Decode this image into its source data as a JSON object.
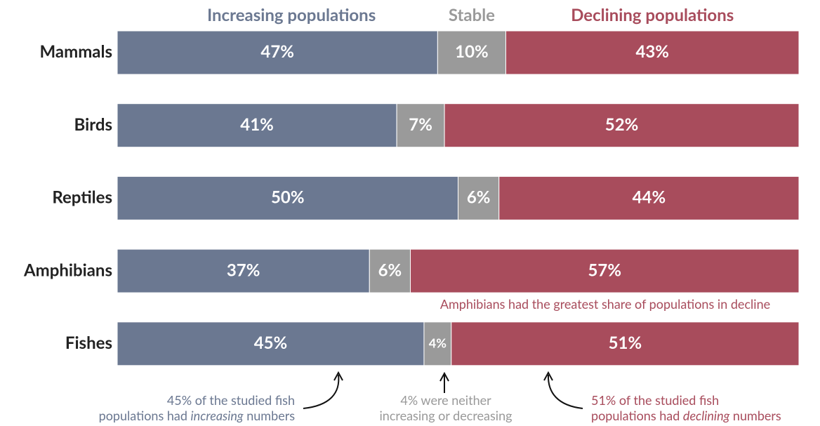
{
  "chart_data": {
    "type": "stacked-bar",
    "orientation": "horizontal",
    "categories": [
      "Mammals",
      "Birds",
      "Reptiles",
      "Amphibians",
      "Fishes"
    ],
    "xlim": [
      0,
      100
    ],
    "series": [
      {
        "name": "Increasing populations",
        "color": "#6b7891",
        "values": [
          47,
          41,
          50,
          37,
          45
        ],
        "value_labels": [
          "47%",
          "41%",
          "50%",
          "37%",
          "45%"
        ]
      },
      {
        "name": "Stable",
        "color": "#9a9a9a",
        "values": [
          10,
          7,
          6,
          6,
          4
        ],
        "value_labels": [
          "10%",
          "7%",
          "6%",
          "6%",
          "4%"
        ]
      },
      {
        "name": "Declining populations",
        "color": "#a84c5c",
        "values": [
          43,
          52,
          44,
          57,
          51
        ],
        "value_labels": [
          "43%",
          "52%",
          "44%",
          "57%",
          "51%"
        ]
      }
    ],
    "annotations": [
      {
        "color": "#a84c5c",
        "lines": [
          [
            {
              "text": "Amphibians had the greatest share of populations in decline"
            }
          ]
        ]
      },
      {
        "color": "#6b7891",
        "lines": [
          [
            {
              "text": "45% of the studied fish"
            }
          ],
          [
            {
              "text": "populations had "
            },
            {
              "text": "increasing",
              "italic": true
            },
            {
              "text": " numbers"
            }
          ]
        ]
      },
      {
        "color": "#999999",
        "lines": [
          [
            {
              "text": "4% were neither"
            }
          ],
          [
            {
              "text": "increasing or decreasing"
            }
          ]
        ]
      },
      {
        "color": "#a84c5c",
        "lines": [
          [
            {
              "text": "51% of the studied fish"
            }
          ],
          [
            {
              "text": "populations had "
            },
            {
              "text": "declining",
              "italic": true
            },
            {
              "text": " numbers"
            }
          ]
        ]
      }
    ]
  }
}
